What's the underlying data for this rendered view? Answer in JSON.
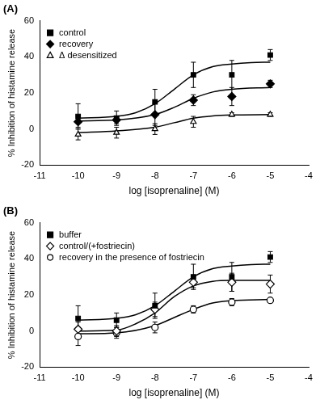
{
  "chart_data": [
    {
      "type": "scatter",
      "title": "(A)",
      "x_label": "log [isoprenaline] (M)",
      "y_label": "% Inhibition of histamine release",
      "xlim": [
        -11,
        -4
      ],
      "xticks": [
        -11,
        -10,
        -9,
        -8,
        -7,
        -6,
        -5,
        -4
      ],
      "ylim": [
        -20,
        60
      ],
      "yticks": [
        -20,
        0,
        20,
        40,
        60
      ],
      "grid": false,
      "legend": "upper left",
      "series": [
        {
          "name": "control",
          "color": "#000000",
          "marker": "square",
          "x": [
            -10,
            -9,
            -8,
            -7,
            -6,
            -5
          ],
          "values": [
            7,
            6,
            15,
            30,
            30,
            41
          ],
          "errors": [
            7,
            4,
            7,
            7,
            8,
            3
          ],
          "fit": {
            "x": [
              -10,
              -9,
              -8.5,
              -8,
              -7.5,
              -7,
              -6.5,
              -6,
              -5.5,
              -5
            ],
            "values": [
              6,
              7,
              9,
              14,
              22,
              30,
              34.5,
              36,
              36.8,
              37
            ]
          }
        },
        {
          "name": "recovery",
          "color": "#000000",
          "marker": "diamond",
          "x": [
            -10,
            -9,
            -8,
            -7,
            -6,
            -5
          ],
          "values": [
            4,
            5,
            8,
            16,
            18,
            25
          ],
          "errors": [
            3,
            2,
            6,
            3,
            5,
            2
          ],
          "fit": {
            "x": [
              -10,
              -9,
              -8,
              -7.5,
              -7,
              -6.5,
              -6,
              -5
            ],
            "values": [
              4.5,
              5,
              8,
              12,
              17,
              20.5,
              22,
              23
            ]
          }
        },
        {
          "name": "Δ desensitized",
          "color": "#000000",
          "marker": "triangle-open",
          "x": [
            -10,
            -9,
            -8,
            -7,
            -6,
            -5
          ],
          "values": [
            -3,
            -2,
            0,
            4,
            8,
            8
          ],
          "errors": [
            3,
            3,
            3,
            3,
            1,
            1
          ],
          "fit": {
            "x": [
              -10,
              -9,
              -8,
              -7.5,
              -7,
              -6.5,
              -6,
              -5
            ],
            "values": [
              -2,
              -1,
              1,
              3.5,
              6,
              7.3,
              7.8,
              8
            ]
          }
        }
      ]
    },
    {
      "type": "scatter",
      "title": "(B)",
      "x_label": "log [isoprenaline] (M)",
      "y_label": "% Inhibition of histamine release",
      "xlim": [
        -11,
        -4
      ],
      "xticks": [
        -11,
        -10,
        -9,
        -8,
        -7,
        -6,
        -5,
        -4
      ],
      "ylim": [
        -20,
        60
      ],
      "yticks": [
        -20,
        0,
        20,
        40,
        60
      ],
      "grid": false,
      "legend": "upper left",
      "series": [
        {
          "name": "buffer",
          "color": "#000000",
          "marker": "square",
          "x": [
            -10,
            -9,
            -8,
            -7,
            -6,
            -5
          ],
          "values": [
            7,
            6,
            14,
            30,
            30,
            41
          ],
          "errors": [
            7,
            4,
            7,
            7,
            8,
            3
          ],
          "fit": {
            "x": [
              -10,
              -9,
              -8.5,
              -8,
              -7.5,
              -7,
              -6.5,
              -6,
              -5.5,
              -5
            ],
            "values": [
              6,
              7,
              9,
              14,
              22,
              30,
              34.5,
              36,
              36.8,
              37
            ]
          }
        },
        {
          "name": "control/(+fostriecin)",
          "color": "#000000",
          "marker": "diamond-open",
          "x": [
            -10,
            -9,
            -8,
            -7,
            -6,
            -5
          ],
          "values": [
            1,
            0,
            12,
            27,
            27,
            26
          ],
          "errors": [
            4,
            3,
            4,
            3,
            5,
            5
          ],
          "fit": {
            "x": [
              -10,
              -9,
              -8.5,
              -8,
              -7.5,
              -7,
              -6.5,
              -6,
              -5
            ],
            "values": [
              0,
              0.5,
              4,
              10,
              19,
              25,
              27.5,
              28,
              28
            ]
          }
        },
        {
          "name": "recovery in the presence of fostriecin",
          "color": "#000000",
          "marker": "circle-open",
          "x": [
            -10,
            -9,
            -8,
            -7,
            -6,
            -5
          ],
          "values": [
            -3,
            -1,
            2,
            12,
            16,
            17
          ],
          "errors": [
            5,
            3,
            3,
            2,
            2,
            1
          ],
          "fit": {
            "x": [
              -10,
              -9,
              -8,
              -7.5,
              -7,
              -6.5,
              -6,
              -5
            ],
            "values": [
              -1.5,
              -1,
              3,
              7.5,
              12,
              15.5,
              16.8,
              17.5
            ]
          }
        }
      ]
    }
  ]
}
